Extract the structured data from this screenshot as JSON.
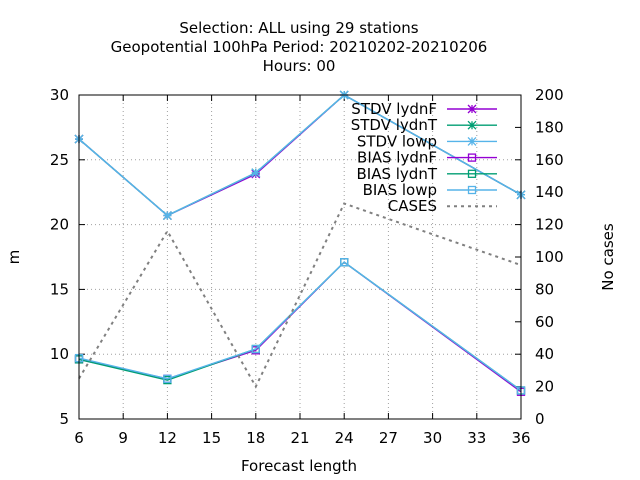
{
  "chart_data": {
    "type": "line",
    "title_lines": [
      "Selection: ALL using    29 stations",
      "Geopotential 100hPa   Period: 20210202-20210206",
      "Hours:  00"
    ],
    "xlabel": "Forecast length",
    "ylabel": "m",
    "y2label": "No cases",
    "xlim": [
      6,
      36
    ],
    "ylim": [
      5,
      30
    ],
    "y2lim": [
      0,
      200
    ],
    "xticks": [
      6,
      9,
      12,
      15,
      18,
      21,
      24,
      27,
      30,
      33,
      36
    ],
    "yticks": [
      5,
      10,
      15,
      20,
      25,
      30
    ],
    "y2ticks": [
      0,
      20,
      40,
      60,
      80,
      100,
      120,
      140,
      160,
      180,
      200
    ],
    "grid": true,
    "legend_position": "top-right",
    "x": [
      6,
      12,
      18,
      24,
      36
    ],
    "series": [
      {
        "name": "STDV lydnF",
        "axis": "y",
        "color": "#9400d3",
        "marker": "x",
        "dash": "none",
        "values": [
          26.6,
          20.7,
          23.9,
          30.0,
          22.3
        ]
      },
      {
        "name": "STDV lydnT",
        "axis": "y",
        "color": "#009e73",
        "marker": "x",
        "dash": "none",
        "values": [
          26.6,
          20.7,
          24.0,
          30.0,
          22.3
        ]
      },
      {
        "name": "STDV lowp",
        "axis": "y",
        "color": "#56b4e9",
        "marker": "x",
        "dash": "none",
        "values": [
          26.6,
          20.7,
          24.0,
          30.0,
          22.3
        ]
      },
      {
        "name": "BIAS lydnF",
        "axis": "y",
        "color": "#9400d3",
        "marker": "square",
        "dash": "none",
        "values": [
          9.6,
          8.1,
          10.3,
          17.1,
          7.1
        ]
      },
      {
        "name": "BIAS lydnT",
        "axis": "y",
        "color": "#009e73",
        "marker": "square",
        "dash": "none",
        "values": [
          9.6,
          8.0,
          10.4,
          17.1,
          7.2
        ]
      },
      {
        "name": "BIAS lowp",
        "axis": "y",
        "color": "#56b4e9",
        "marker": "square",
        "dash": "none",
        "values": [
          9.7,
          8.1,
          10.4,
          17.1,
          7.2
        ]
      },
      {
        "name": "CASES",
        "axis": "y2",
        "color": "#808080",
        "marker": "none",
        "dash": "dot",
        "values": [
          25,
          116,
          20,
          133,
          95
        ]
      }
    ]
  }
}
